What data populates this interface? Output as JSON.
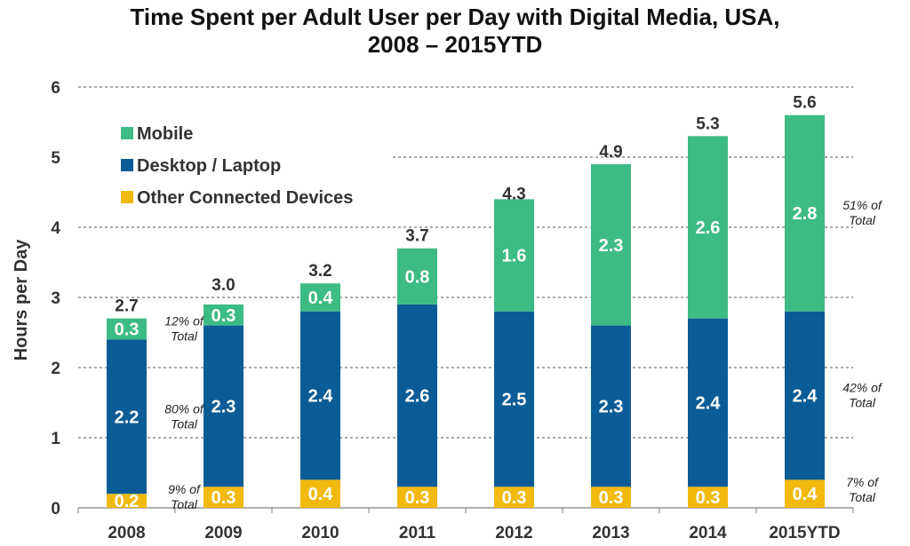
{
  "chart_data": {
    "type": "bar",
    "stacked": true,
    "title_line1": "Time Spent per Adult User per Day with Digital Media, USA,",
    "title_line2": "2008 – 2015YTD",
    "ylabel": "Hours per Day",
    "xlabel": "",
    "ylim": [
      0,
      6
    ],
    "yticks": [
      "0",
      "1",
      "2",
      "3",
      "4",
      "5",
      "6"
    ],
    "grid": true,
    "legend_position": "top-left",
    "categories": [
      "2008",
      "2009",
      "2010",
      "2011",
      "2012",
      "2013",
      "2014",
      "2015YTD"
    ],
    "series": [
      {
        "name": "Other Connected Devices",
        "color": "#f2b90f",
        "values": [
          0.2,
          0.3,
          0.4,
          0.3,
          0.3,
          0.3,
          0.3,
          0.4
        ],
        "labels": [
          "0.2",
          "0.3",
          "0.4",
          "0.3",
          "0.3",
          "0.3",
          "0.3",
          "0.4"
        ]
      },
      {
        "name": "Desktop / Laptop",
        "color": "#0b5c96",
        "values": [
          2.2,
          2.3,
          2.4,
          2.6,
          2.5,
          2.3,
          2.4,
          2.4
        ],
        "labels": [
          "2.2",
          "2.3",
          "2.4",
          "2.6",
          "2.5",
          "2.3",
          "2.4",
          "2.4"
        ]
      },
      {
        "name": "Mobile",
        "color": "#3dbb85",
        "values": [
          0.3,
          0.3,
          0.4,
          0.8,
          1.6,
          2.3,
          2.6,
          2.8
        ],
        "labels": [
          "0.3",
          "0.3",
          "0.4",
          "0.8",
          "1.6",
          "2.3",
          "2.6",
          "2.8"
        ]
      }
    ],
    "totals": [
      2.7,
      3.0,
      3.2,
      3.7,
      4.3,
      4.9,
      5.3,
      5.6
    ],
    "total_labels": [
      "2.7",
      "3.0",
      "3.2",
      "3.7",
      "4.3",
      "4.9",
      "5.3",
      "5.6"
    ],
    "legend_order": [
      "Mobile",
      "Desktop / Laptop",
      "Other Connected Devices"
    ],
    "annotations": [
      {
        "category": "2008",
        "series": "Mobile",
        "line1": "12% of",
        "line2": "Total"
      },
      {
        "category": "2008",
        "series": "Desktop / Laptop",
        "line1": "80% of",
        "line2": "Total"
      },
      {
        "category": "2008",
        "series": "Other Connected Devices",
        "line1": "9% of",
        "line2": "Total"
      },
      {
        "category": "2015YTD",
        "series": "Mobile",
        "line1": "51% of",
        "line2": "Total"
      },
      {
        "category": "2015YTD",
        "series": "Desktop / Laptop",
        "line1": "42% of",
        "line2": "Total"
      },
      {
        "category": "2015YTD",
        "series": "Other Connected Devices",
        "line1": "7% of",
        "line2": "Total"
      }
    ]
  }
}
